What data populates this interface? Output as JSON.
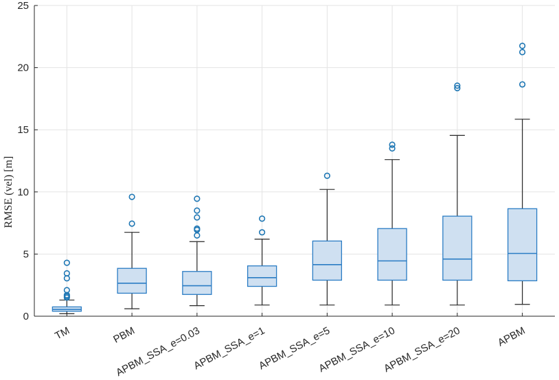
{
  "chart_data": {
    "type": "box",
    "title": "",
    "xlabel": "",
    "ylabel": "RMSE (vel) [m]",
    "ylim": [
      0,
      25
    ],
    "yticks": [
      0,
      5,
      10,
      15,
      20,
      25
    ],
    "grid": true,
    "colors": {
      "box_fill": "#cfe0f1",
      "box_edge": "#2a7cc4",
      "whisker": "#262626",
      "outlier": "#1f77b4",
      "grid": "#e3e3e3",
      "axis": "#262626"
    },
    "categories": [
      "TM",
      "PBM",
      "APBM_SSA_e=0.03",
      "APBM_SSA_e=1",
      "APBM_SSA_e=5",
      "APBM_SSA_e=10",
      "APBM_SSA_e=20",
      "APBM"
    ],
    "boxes": [
      {
        "name": "TM",
        "min": 0.2,
        "q1": 0.4,
        "median": 0.55,
        "q3": 0.75,
        "max": 1.3,
        "outliers": [
          1.5,
          1.6,
          1.7,
          2.1,
          3.05,
          3.45,
          4.3
        ]
      },
      {
        "name": "PBM",
        "min": 0.6,
        "q1": 1.85,
        "median": 2.65,
        "q3": 3.85,
        "max": 6.75,
        "outliers": [
          7.45,
          9.6
        ]
      },
      {
        "name": "APBM_SSA_e=0.03",
        "min": 0.85,
        "q1": 1.75,
        "median": 2.45,
        "q3": 3.6,
        "max": 6.0,
        "outliers": [
          6.5,
          6.95,
          7.05,
          7.95,
          8.5,
          9.45
        ]
      },
      {
        "name": "APBM_SSA_e=1",
        "min": 0.9,
        "q1": 2.4,
        "median": 3.1,
        "q3": 4.05,
        "max": 6.2,
        "outliers": [
          6.75,
          7.85
        ]
      },
      {
        "name": "APBM_SSA_e=5",
        "min": 0.9,
        "q1": 2.9,
        "median": 4.15,
        "q3": 6.05,
        "max": 10.2,
        "outliers": [
          11.3
        ]
      },
      {
        "name": "APBM_SSA_e=10",
        "min": 0.9,
        "q1": 2.9,
        "median": 4.45,
        "q3": 7.05,
        "max": 12.6,
        "outliers": [
          13.5,
          13.8
        ]
      },
      {
        "name": "APBM_SSA_e=20",
        "min": 0.9,
        "q1": 2.9,
        "median": 4.6,
        "q3": 8.05,
        "max": 14.55,
        "outliers": [
          18.35,
          18.55
        ]
      },
      {
        "name": "APBM",
        "min": 0.95,
        "q1": 2.85,
        "median": 5.05,
        "q3": 8.65,
        "max": 15.85,
        "outliers": [
          18.65,
          21.25,
          21.75
        ]
      }
    ]
  }
}
